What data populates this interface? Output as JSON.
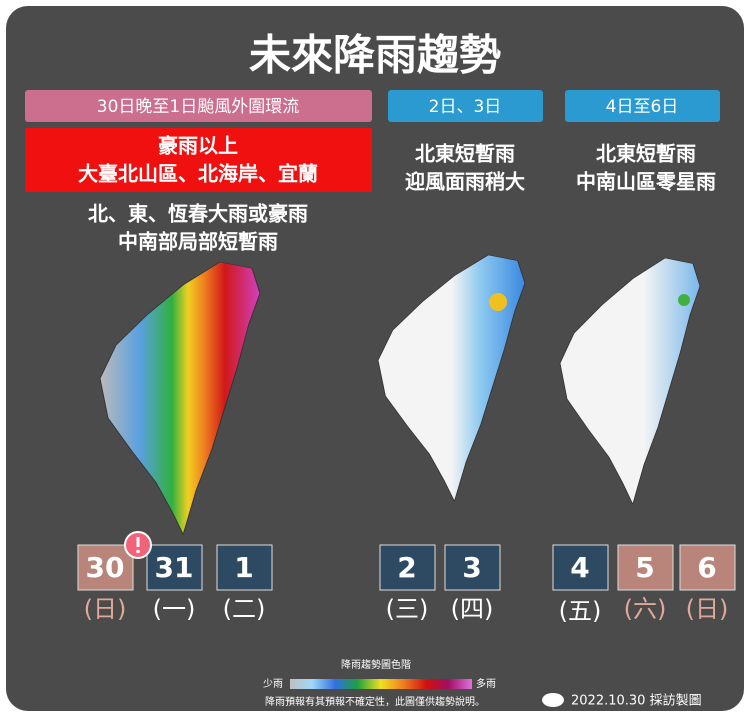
{
  "title": "未來降雨趨勢",
  "panels": [
    {
      "header": "30日晚至1日颱風外圍環流",
      "alert_lines": [
        "豪雨以上",
        "大臺北山區、北海岸、宜蘭"
      ],
      "lines": [
        "北、東、恆春大雨或豪雨",
        "中南部局部短暫雨"
      ],
      "days": [
        {
          "date": "30",
          "weekday": "(日)"
        },
        {
          "date": "31",
          "weekday": "(一)"
        },
        {
          "date": "1",
          "weekday": "(二)"
        }
      ]
    },
    {
      "header": "2日、3日",
      "lines": [
        "北東短暫雨",
        "迎風面雨稍大"
      ],
      "days": [
        {
          "date": "2",
          "weekday": "(三)"
        },
        {
          "date": "3",
          "weekday": "(四)"
        }
      ]
    },
    {
      "header": "4日至6日",
      "lines": [
        "北東短暫雨",
        "中南山區零星雨"
      ],
      "days": [
        {
          "date": "4",
          "weekday": "(五)"
        },
        {
          "date": "5",
          "weekday": "(六)"
        },
        {
          "date": "6",
          "weekday": "(日)"
        }
      ]
    }
  ],
  "legend": {
    "title": "降雨趨勢圖色階",
    "low": "少雨",
    "high": "多雨",
    "note": "降雨預報有其預報不確定性，此圖僅供趨勢說明。"
  },
  "footer": "2022.10.30 採訪製圖"
}
